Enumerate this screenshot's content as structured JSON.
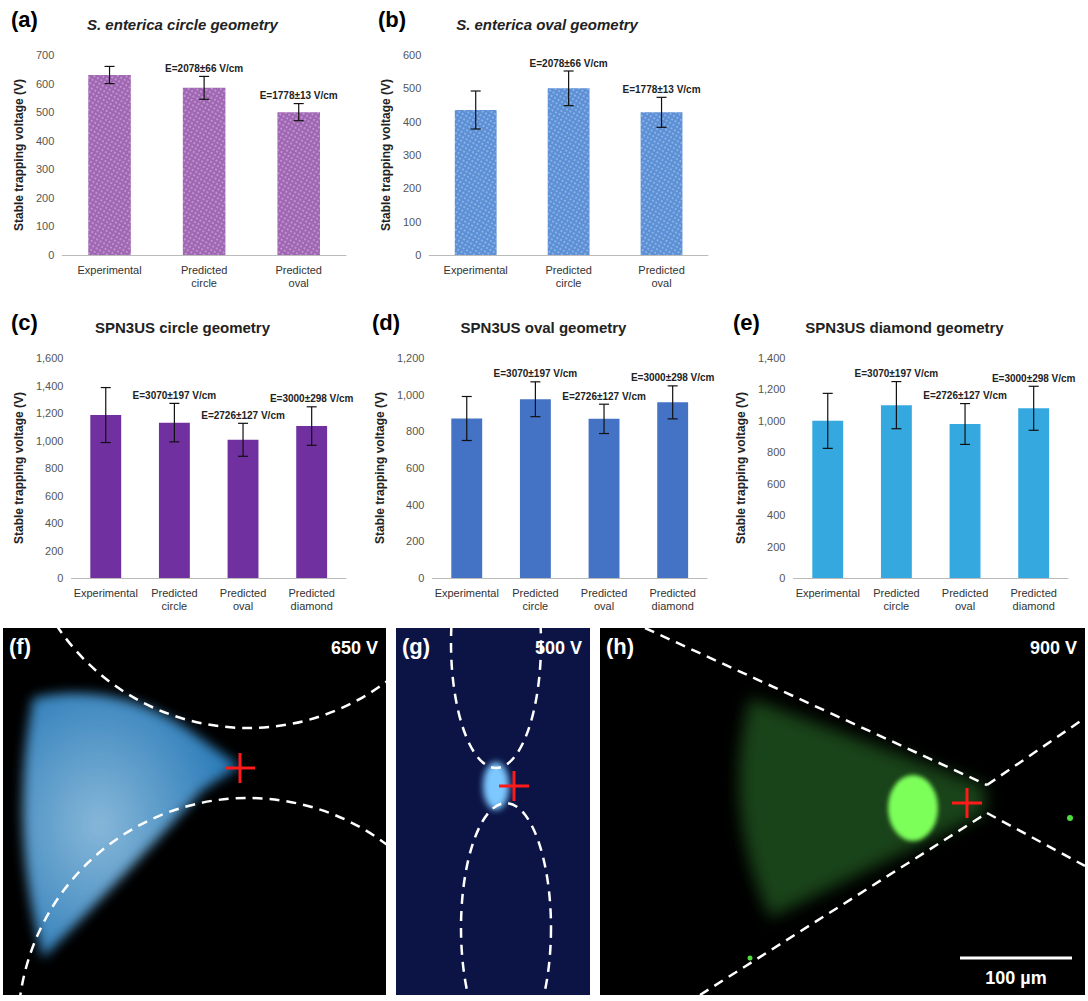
{
  "chart_data": [
    {
      "type": "bar",
      "panel": "(a)",
      "title": "S. enterica circle geometry",
      "categories": [
        "Experimental",
        "Predicted circle",
        "Predicted oval"
      ],
      "values": [
        630,
        585,
        500
      ],
      "errors": [
        30,
        40,
        30
      ],
      "color": "#a066b4",
      "ylabel": "Stable trapping voltage (V)",
      "ylim": [
        0,
        700
      ],
      "yticks": [
        0,
        100,
        200,
        300,
        400,
        500,
        600,
        700
      ],
      "grid": false,
      "annotations": [
        {
          "category": "Predicted circle",
          "text": "E=2078±66 V/cm"
        },
        {
          "category": "Predicted oval",
          "text": "E=1778±13 V/cm"
        }
      ]
    },
    {
      "type": "bar",
      "panel": "(b)",
      "title": "S. enterica oval geometry",
      "categories": [
        "Experimental",
        "Predicted circle",
        "Predicted oval"
      ],
      "values": [
        435,
        500,
        428
      ],
      "errors": [
        57,
        52,
        45
      ],
      "color": "#5b8fd6",
      "ylabel": "Stable trapping voltage (V)",
      "ylim": [
        0,
        600
      ],
      "yticks": [
        0,
        100,
        200,
        300,
        400,
        500,
        600
      ],
      "grid": false,
      "annotations": [
        {
          "category": "Predicted circle",
          "text": "E=2078±66 V/cm"
        },
        {
          "category": "Predicted oval",
          "text": "E=1778±13 V/cm"
        }
      ]
    },
    {
      "type": "bar",
      "panel": "(c)",
      "title": "SPN3US circle geometry",
      "categories": [
        "Experimental",
        "Predicted circle",
        "Predicted oval",
        "Predicted diamond"
      ],
      "values": [
        1185,
        1130,
        1005,
        1105
      ],
      "errors": [
        200,
        140,
        120,
        140
      ],
      "color": "#7030a0",
      "ylabel": "Stable trapping voltage (V)",
      "ylim": [
        0,
        1600
      ],
      "yticks": [
        0,
        200,
        400,
        600,
        800,
        {
          "value": 1000,
          "label": "1,000"
        },
        {
          "value": 1200,
          "label": "1,200"
        },
        {
          "value": 1400,
          "label": "1,400"
        },
        {
          "value": 1600,
          "label": "1,600"
        }
      ],
      "grid": false,
      "annotations": [
        {
          "category": "Predicted circle",
          "text": "E=3070±197 V/cm"
        },
        {
          "category": "Predicted oval",
          "text": "E=2726±127 V/cm"
        },
        {
          "category": "Predicted diamond",
          "text": "E=3000±298 V/cm"
        }
      ]
    },
    {
      "type": "bar",
      "panel": "(d)",
      "title": "SPN3US oval geometry",
      "categories": [
        "Experimental",
        "Predicted circle",
        "Predicted oval",
        "Predicted diamond"
      ],
      "values": [
        870,
        975,
        868,
        958
      ],
      "errors": [
        120,
        95,
        80,
        90
      ],
      "color": "#4472c4",
      "ylabel": "Stable trapping voltage (V)",
      "ylim": [
        0,
        1200
      ],
      "yticks": [
        0,
        200,
        400,
        600,
        800,
        {
          "value": 1000,
          "label": "1,000"
        },
        {
          "value": 1200,
          "label": "1,200"
        }
      ],
      "grid": false,
      "annotations": [
        {
          "category": "Predicted circle",
          "text": "E=3070±197 V/cm"
        },
        {
          "category": "Predicted oval",
          "text": "E=2726±127 V/cm"
        },
        {
          "category": "Predicted diamond",
          "text": "E=3000±298 V/cm"
        }
      ]
    },
    {
      "type": "bar",
      "panel": "(e)",
      "title": "SPN3US diamond geometry",
      "categories": [
        "Experimental",
        "Predicted circle",
        "Predicted oval",
        "Predicted diamond"
      ],
      "values": [
        1000,
        1100,
        980,
        1080
      ],
      "errors": [
        175,
        150,
        130,
        140
      ],
      "color": "#35a8e0",
      "ylabel": "Stable trapping voltage (V)",
      "ylim": [
        0,
        1400
      ],
      "yticks": [
        0,
        200,
        400,
        600,
        800,
        {
          "value": 1000,
          "label": "1,000"
        },
        {
          "value": 1200,
          "label": "1,200"
        },
        {
          "value": 1400,
          "label": "1,400"
        }
      ],
      "grid": false,
      "annotations": [
        {
          "category": "Predicted circle",
          "text": "E=3070±197 V/cm"
        },
        {
          "category": "Predicted oval",
          "text": "E=2726±127 V/cm"
        },
        {
          "category": "Predicted diamond",
          "text": "E=3000±298 V/cm"
        }
      ]
    }
  ],
  "images": [
    {
      "panel": "(f)",
      "label": "650 V"
    },
    {
      "panel": "(g)",
      "label": "500 V"
    },
    {
      "panel": "(h)",
      "label": "900 V"
    }
  ],
  "scale_bar": "100 µm"
}
